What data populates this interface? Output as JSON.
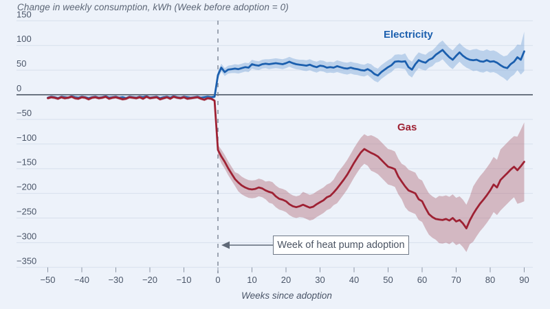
{
  "colors": {
    "background": "#edf2fa",
    "gridline": "#d7dfec",
    "zero_line": "#3f4a59",
    "tick": "#8a94a4",
    "event_line": "#7b8494",
    "axis_text": "#4a5568",
    "title_text": "#5b6575",
    "annotation_text": "#4a5362",
    "annotation_border": "#6e7886",
    "arrow": "#5f6977"
  },
  "chart_data": {
    "type": "line",
    "title": "Change in weekly consumption, kWh (Week before adoption = 0)",
    "xlabel": "Weeks since adoption",
    "ylabel": "",
    "xlim": [
      -50,
      90
    ],
    "ylim": [
      -350,
      150
    ],
    "grid": true,
    "legend_position": "inline-labels",
    "event_week": 0,
    "annotation": {
      "text": "Week of heat pump adoption",
      "points_to_week": 0
    },
    "x_ticks": [
      -50,
      -40,
      -30,
      -20,
      -10,
      0,
      10,
      20,
      30,
      40,
      50,
      60,
      70,
      80,
      90
    ],
    "x_tick_labels": [
      "−50",
      "−40",
      "−30",
      "−20",
      "−10",
      "0",
      "10",
      "20",
      "30",
      "40",
      "50",
      "60",
      "70",
      "80",
      "90"
    ],
    "y_ticks": [
      150,
      100,
      50,
      0,
      -50,
      -100,
      -150,
      -200,
      -250,
      -300,
      -350
    ],
    "y_tick_labels": [
      "150",
      "100",
      "50",
      "0",
      "−50",
      "−100",
      "−150",
      "−200",
      "−250",
      "−300",
      "−350"
    ],
    "weeks": [
      -50,
      -49,
      -48,
      -47,
      -46,
      -45,
      -44,
      -43,
      -42,
      -41,
      -40,
      -39,
      -38,
      -37,
      -36,
      -35,
      -34,
      -33,
      -32,
      -31,
      -30,
      -29,
      -28,
      -27,
      -26,
      -25,
      -24,
      -23,
      -22,
      -21,
      -20,
      -19,
      -18,
      -17,
      -16,
      -15,
      -14,
      -13,
      -12,
      -11,
      -10,
      -9,
      -8,
      -7,
      -6,
      -5,
      -4,
      -3,
      -2,
      -1,
      0,
      1,
      2,
      3,
      4,
      5,
      6,
      7,
      8,
      9,
      10,
      11,
      12,
      13,
      14,
      15,
      16,
      17,
      18,
      19,
      20,
      21,
      22,
      23,
      24,
      25,
      26,
      27,
      28,
      29,
      30,
      31,
      32,
      33,
      34,
      35,
      36,
      37,
      38,
      39,
      40,
      41,
      42,
      43,
      44,
      45,
      46,
      47,
      48,
      49,
      50,
      51,
      52,
      53,
      54,
      55,
      56,
      57,
      58,
      59,
      60,
      61,
      62,
      63,
      64,
      65,
      66,
      67,
      68,
      69,
      70,
      71,
      72,
      73,
      74,
      75,
      76,
      77,
      78,
      79,
      80,
      81,
      82,
      83,
      84,
      85,
      86,
      87,
      88,
      89,
      90
    ],
    "series": [
      {
        "name": "Electricity",
        "line_color": "#1b5fae",
        "band_color": "#7fa8d9",
        "band_opacity": 0.45,
        "values": [
          -6,
          -4,
          -5,
          -7,
          -4,
          -5,
          -6,
          -3,
          -5,
          -6,
          -4,
          -5,
          -7,
          -5,
          -4,
          -6,
          -5,
          -3,
          -6,
          -5,
          -4,
          -6,
          -5,
          -7,
          -4,
          -5,
          -6,
          -4,
          -5,
          -3,
          -6,
          -5,
          -4,
          -7,
          -5,
          -4,
          -6,
          -3,
          -5,
          -6,
          -4,
          -5,
          -6,
          -5,
          -4,
          -6,
          -5,
          -4,
          -5,
          -4,
          40,
          55,
          46,
          51,
          52,
          53,
          52,
          54,
          56,
          55,
          62,
          60,
          59,
          62,
          63,
          62,
          63,
          64,
          63,
          62,
          64,
          67,
          64,
          62,
          61,
          60,
          59,
          61,
          58,
          56,
          59,
          58,
          55,
          56,
          55,
          58,
          56,
          54,
          53,
          55,
          53,
          52,
          50,
          49,
          52,
          48,
          42,
          39,
          46,
          51,
          56,
          60,
          67,
          68,
          67,
          68,
          56,
          51,
          62,
          70,
          67,
          65,
          71,
          74,
          81,
          86,
          91,
          83,
          76,
          71,
          79,
          86,
          79,
          74,
          71,
          70,
          71,
          68,
          67,
          70,
          67,
          68,
          65,
          60,
          56,
          54,
          62,
          67,
          76,
          71,
          88
        ],
        "ci": [
          3,
          3,
          3,
          3,
          3,
          3,
          3,
          3,
          3,
          3,
          3,
          3,
          3,
          3,
          3,
          3,
          3,
          3,
          3,
          3,
          3,
          3,
          3,
          3,
          3,
          3,
          3,
          3,
          3,
          3,
          3,
          3,
          3,
          3,
          3,
          3,
          3,
          3,
          3,
          3,
          3,
          3,
          3,
          3,
          3,
          3,
          3,
          3,
          3,
          3,
          8,
          8,
          8,
          8,
          8,
          9,
          9,
          9,
          9,
          9,
          9,
          9,
          9,
          9,
          9,
          10,
          10,
          10,
          10,
          10,
          10,
          10,
          10,
          10,
          10,
          11,
          11,
          11,
          11,
          11,
          11,
          11,
          11,
          11,
          11,
          12,
          12,
          12,
          12,
          12,
          12,
          12,
          12,
          12,
          12,
          14,
          14,
          14,
          14,
          14,
          14,
          14,
          14,
          14,
          14,
          16,
          16,
          16,
          16,
          16,
          16,
          16,
          16,
          16,
          16,
          19,
          19,
          19,
          19,
          19,
          19,
          19,
          19,
          19,
          19,
          22,
          22,
          22,
          22,
          22,
          22,
          22,
          22,
          22,
          22,
          26,
          26,
          26,
          26,
          30,
          40
        ]
      },
      {
        "name": "Gas",
        "line_color": "#9e2133",
        "band_color": "#b06a74",
        "band_opacity": 0.42,
        "values": [
          -7,
          -5,
          -6,
          -8,
          -5,
          -7,
          -6,
          -4,
          -7,
          -8,
          -5,
          -6,
          -9,
          -6,
          -5,
          -7,
          -6,
          -4,
          -8,
          -6,
          -5,
          -7,
          -9,
          -8,
          -5,
          -6,
          -7,
          -5,
          -8,
          -4,
          -7,
          -6,
          -5,
          -9,
          -7,
          -5,
          -8,
          -4,
          -6,
          -7,
          -5,
          -8,
          -7,
          -6,
          -5,
          -8,
          -10,
          -7,
          -8,
          -12,
          -112,
          -125,
          -136,
          -149,
          -160,
          -171,
          -178,
          -184,
          -188,
          -191,
          -192,
          -191,
          -188,
          -190,
          -194,
          -197,
          -199,
          -206,
          -211,
          -213,
          -216,
          -222,
          -226,
          -228,
          -226,
          -223,
          -226,
          -229,
          -227,
          -222,
          -218,
          -214,
          -208,
          -205,
          -198,
          -190,
          -181,
          -172,
          -162,
          -150,
          -138,
          -127,
          -117,
          -110,
          -114,
          -118,
          -121,
          -125,
          -132,
          -139,
          -146,
          -148,
          -151,
          -166,
          -176,
          -186,
          -194,
          -197,
          -200,
          -212,
          -216,
          -230,
          -242,
          -248,
          -252,
          -253,
          -254,
          -252,
          -255,
          -250,
          -257,
          -254,
          -261,
          -271,
          -255,
          -242,
          -231,
          -221,
          -213,
          -204,
          -194,
          -182,
          -188,
          -173,
          -166,
          -159,
          -152,
          -146,
          -153,
          -145,
          -136
        ],
        "ci": [
          3,
          3,
          3,
          3,
          3,
          3,
          3,
          3,
          3,
          3,
          3,
          3,
          3,
          3,
          3,
          3,
          3,
          3,
          3,
          3,
          3,
          3,
          3,
          3,
          3,
          3,
          3,
          3,
          3,
          3,
          3,
          3,
          3,
          3,
          3,
          3,
          3,
          3,
          3,
          3,
          3,
          3,
          3,
          3,
          3,
          3,
          3,
          3,
          3,
          3,
          10,
          14,
          14,
          14,
          14,
          14,
          18,
          18,
          18,
          18,
          18,
          18,
          18,
          18,
          18,
          22,
          22,
          22,
          22,
          22,
          22,
          22,
          22,
          22,
          22,
          26,
          26,
          26,
          26,
          26,
          26,
          26,
          26,
          26,
          26,
          30,
          30,
          30,
          30,
          30,
          30,
          30,
          30,
          30,
          30,
          36,
          36,
          36,
          36,
          36,
          36,
          36,
          36,
          36,
          36,
          42,
          42,
          42,
          42,
          42,
          42,
          42,
          42,
          42,
          42,
          48,
          48,
          48,
          48,
          48,
          48,
          48,
          48,
          48,
          48,
          56,
          56,
          56,
          56,
          56,
          56,
          56,
          56,
          62,
          62,
          62,
          62,
          62,
          68,
          74,
          80
        ]
      }
    ]
  }
}
